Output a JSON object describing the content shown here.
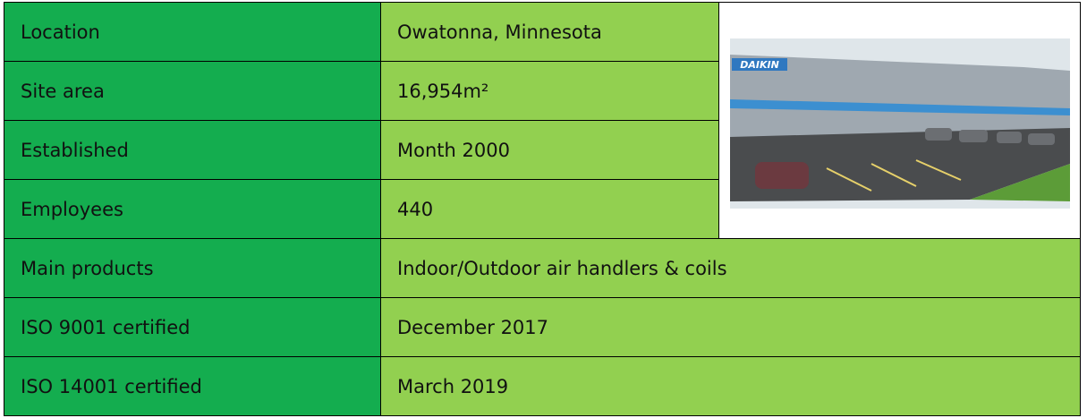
{
  "table": {
    "rows": [
      [
        "Location",
        "Owatonna, Minnesota"
      ],
      [
        "Site area",
        "16,954m²"
      ],
      [
        "Established",
        "Month 2000"
      ],
      [
        "Employees",
        "440"
      ],
      [
        "Main products",
        "Indoor/Outdoor air handlers & coils"
      ],
      [
        "ISO 9001 certified",
        "December 2017"
      ],
      [
        "ISO 14001 certified",
        "March 2019"
      ]
    ]
  },
  "photo": {
    "sign": "DAIKIN"
  }
}
